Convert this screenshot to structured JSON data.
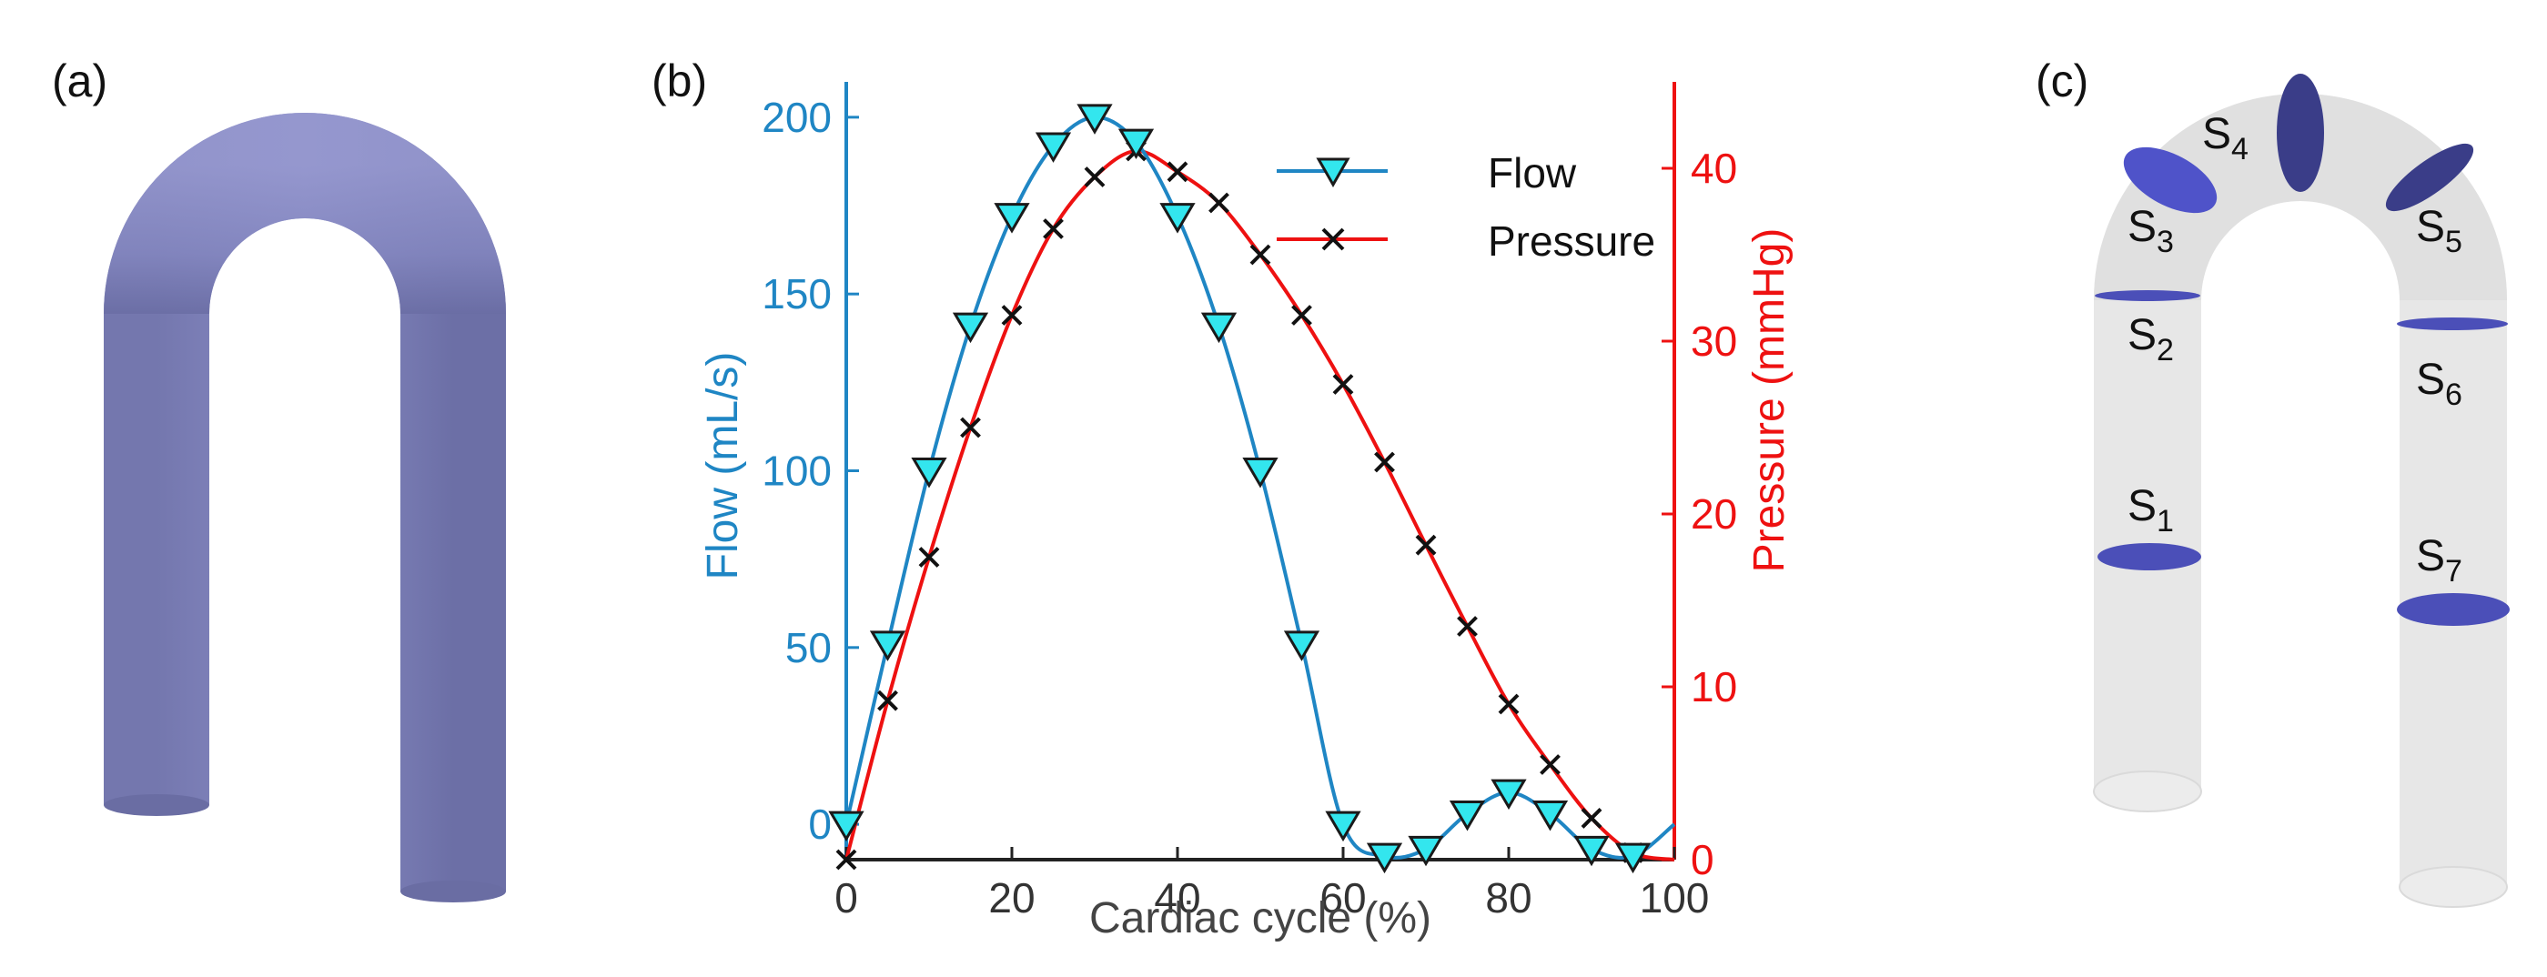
{
  "panels": {
    "a": "(a)",
    "b": "(b)",
    "c": "(c)"
  },
  "sections": {
    "letter": "S",
    "labels": [
      "1",
      "2",
      "3",
      "4",
      "5",
      "6",
      "7"
    ]
  },
  "colors": {
    "tube_solid": "#7f82b9",
    "tube_ghost": "#e4e4e4",
    "section_fill": "#4b4fb8",
    "flow_line": "#1f86c4",
    "flow_marker": "#33e6ee",
    "pressure_line": "#ee1111",
    "pressure_marker": "#111111"
  },
  "chart_data": {
    "type": "line",
    "title": "",
    "xlabel": "Cardiac cycle (%)",
    "ylabel_left": "Flow  (mL/s)",
    "ylabel_right": "Pressure (mmHg)",
    "xlim": [
      0,
      100
    ],
    "ylim_left": [
      -10,
      210
    ],
    "ylim_right": [
      0,
      45
    ],
    "xticks": [
      0,
      20,
      40,
      60,
      80,
      100
    ],
    "yticks_left": [
      0,
      50,
      100,
      150,
      200
    ],
    "yticks_right": [
      0,
      10,
      20,
      30,
      40
    ],
    "legend_position": "top-right",
    "series": [
      {
        "name": "Flow",
        "axis": "left",
        "marker": "triangle-down",
        "x": [
          0,
          5,
          10,
          15,
          20,
          25,
          30,
          35,
          40,
          45,
          50,
          55,
          60,
          65,
          70,
          75,
          80,
          85,
          90,
          95
        ],
        "values": [
          0,
          51,
          100,
          141,
          172,
          192,
          200,
          193,
          172,
          141,
          100,
          51,
          0,
          -9,
          -7,
          3,
          9,
          3,
          -7,
          -9
        ]
      },
      {
        "name": "Pressure",
        "axis": "right",
        "marker": "x",
        "x": [
          0,
          5,
          10,
          15,
          20,
          25,
          30,
          35,
          40,
          45,
          50,
          55,
          60,
          65,
          70,
          75,
          80,
          85,
          90,
          95
        ],
        "values": [
          0,
          9.2,
          17.5,
          25,
          31.5,
          36.5,
          39.5,
          41,
          39.8,
          38,
          35,
          31.5,
          27.5,
          23,
          18.2,
          13.5,
          9,
          5.5,
          2.4,
          0.4
        ]
      }
    ]
  }
}
